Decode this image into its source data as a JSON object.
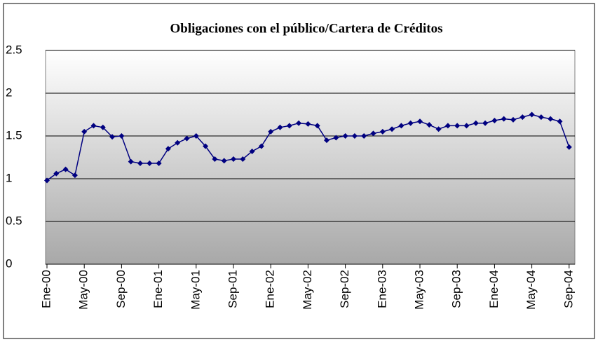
{
  "chart_data": {
    "type": "line",
    "title": "Obligaciones con el público/Cartera de Créditos",
    "categories": [
      "Ene-00",
      null,
      null,
      null,
      "May-00",
      null,
      null,
      null,
      "Sep-00",
      null,
      null,
      null,
      "Ene-01",
      null,
      null,
      null,
      "May-01",
      null,
      null,
      null,
      "Sep-01",
      null,
      null,
      null,
      "Ene-02",
      null,
      null,
      null,
      "May-02",
      null,
      null,
      null,
      "Sep-02",
      null,
      null,
      null,
      "Ene-03",
      null,
      null,
      null,
      "May-03",
      null,
      null,
      null,
      "Sep-03",
      null,
      null,
      null,
      "Ene-04",
      null,
      null,
      null,
      "May-04",
      null,
      null,
      null,
      "Sep-04"
    ],
    "values": [
      0.98,
      1.06,
      1.11,
      1.04,
      1.55,
      1.62,
      1.6,
      1.49,
      1.5,
      1.2,
      1.18,
      1.18,
      1.18,
      1.35,
      1.42,
      1.47,
      1.5,
      1.38,
      1.23,
      1.21,
      1.23,
      1.23,
      1.32,
      1.38,
      1.55,
      1.6,
      1.62,
      1.65,
      1.64,
      1.62,
      1.45,
      1.48,
      1.5,
      1.5,
      1.5,
      1.53,
      1.55,
      1.58,
      1.62,
      1.65,
      1.67,
      1.63,
      1.58,
      1.62,
      1.62,
      1.62,
      1.65,
      1.65,
      1.68,
      1.7,
      1.69,
      1.72,
      1.75,
      1.72,
      1.7,
      1.67,
      1.37
    ],
    "color": "#000080",
    "ylim": [
      0,
      2.5
    ],
    "yticks": [
      0,
      0.5,
      1,
      1.5,
      2,
      2.5
    ],
    "grid": true
  }
}
